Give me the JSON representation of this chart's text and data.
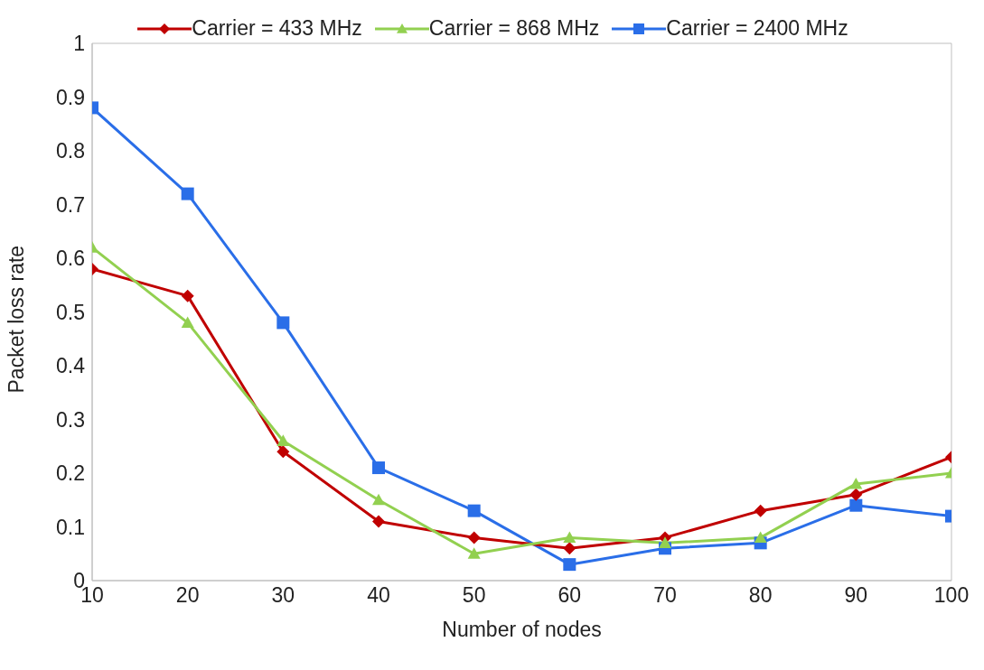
{
  "chart_data": {
    "type": "line",
    "xlabel": "Number of nodes",
    "ylabel": "Packet loss rate",
    "x": [
      10,
      20,
      30,
      40,
      50,
      60,
      70,
      80,
      90,
      100
    ],
    "series": [
      {
        "name": "Carrier = 433 MHz",
        "color": "#c00000",
        "marker": "diamond",
        "values": [
          0.58,
          0.53,
          0.24,
          0.11,
          0.08,
          0.06,
          0.08,
          0.13,
          0.16,
          0.23
        ]
      },
      {
        "name": "Carrier = 868 MHz",
        "color": "#92d050",
        "marker": "triangle",
        "values": [
          0.62,
          0.48,
          0.26,
          0.15,
          0.05,
          0.08,
          0.07,
          0.08,
          0.18,
          0.2
        ]
      },
      {
        "name": "Carrier = 2400 MHz",
        "color": "#2a6ee8",
        "marker": "square",
        "values": [
          0.88,
          0.72,
          0.48,
          0.21,
          0.13,
          0.03,
          0.06,
          0.07,
          0.14,
          0.12
        ]
      }
    ],
    "xlim": [
      10,
      100
    ],
    "xticks": [
      10,
      20,
      30,
      40,
      50,
      60,
      70,
      80,
      90,
      100
    ],
    "ylim": [
      0,
      1
    ],
    "yticks": [
      0,
      0.1,
      0.2,
      0.3,
      0.4,
      0.5,
      0.6,
      0.7,
      0.8,
      0.9,
      1
    ],
    "grid": false,
    "legend": "top",
    "line_style": "solid"
  }
}
